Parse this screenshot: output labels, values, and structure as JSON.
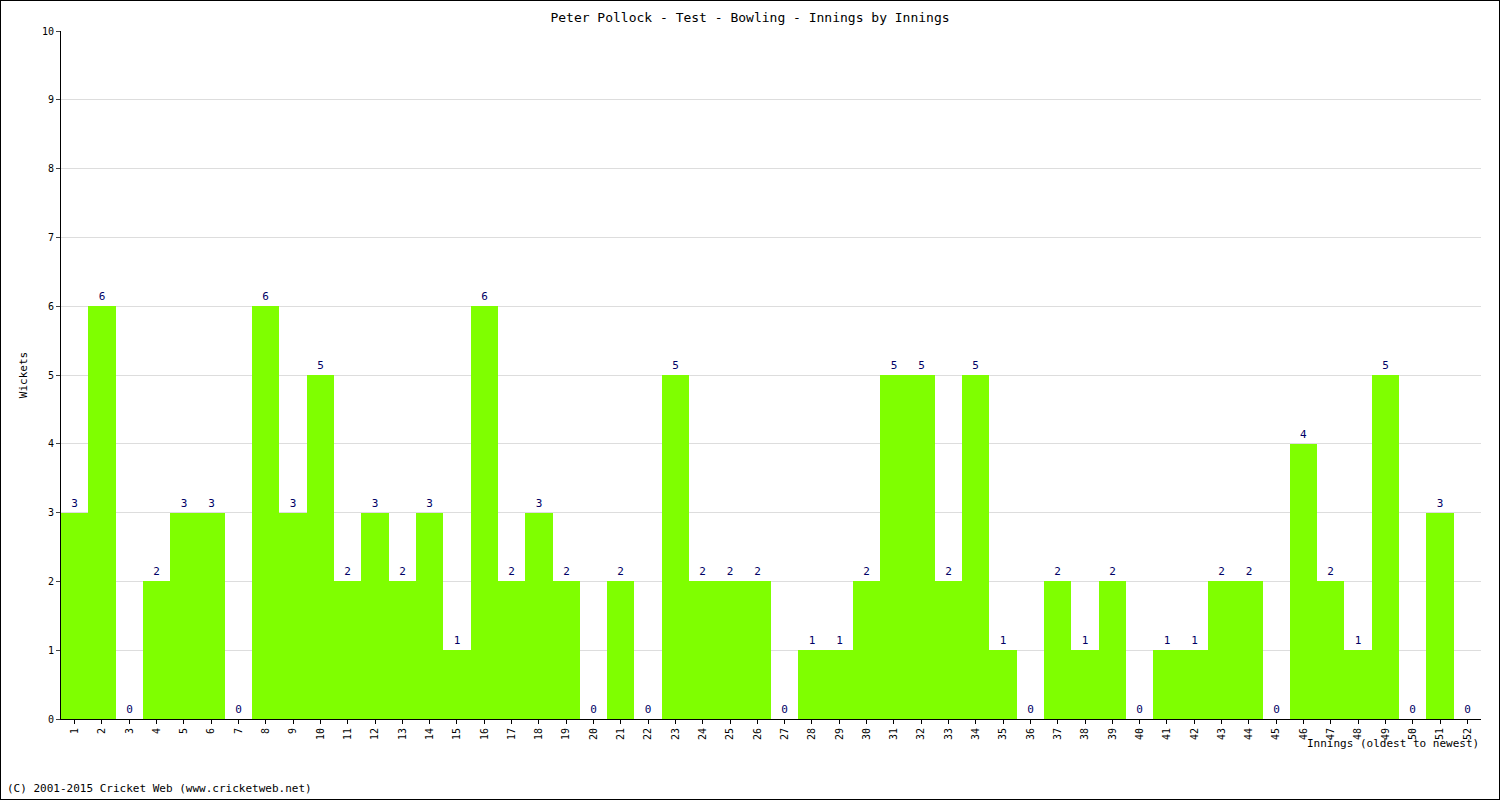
{
  "chart_data": {
    "type": "bar",
    "title": "Peter Pollock - Test - Bowling - Innings by Innings",
    "x_label": "Innings (oldest to newest)",
    "y_label": "Wickets",
    "annotations": [
      "(C) 2001-2015 Cricket Web (www.cricketweb.net)"
    ],
    "categories": [
      "1",
      "2",
      "3",
      "4",
      "5",
      "6",
      "7",
      "8",
      "9",
      "10",
      "11",
      "12",
      "13",
      "14",
      "15",
      "16",
      "17",
      "18",
      "19",
      "20",
      "21",
      "22",
      "23",
      "24",
      "25",
      "26",
      "27",
      "28",
      "29",
      "30",
      "31",
      "32",
      "33",
      "34",
      "35",
      "36",
      "37",
      "38",
      "39",
      "40",
      "41",
      "42",
      "43",
      "44",
      "45",
      "46",
      "47",
      "48",
      "49",
      "50",
      "51",
      "52"
    ],
    "values": [
      3,
      6,
      0,
      2,
      3,
      3,
      0,
      6,
      3,
      5,
      2,
      3,
      2,
      3,
      1,
      6,
      2,
      3,
      2,
      0,
      2,
      0,
      5,
      2,
      2,
      2,
      0,
      1,
      1,
      2,
      5,
      5,
      2,
      5,
      1,
      0,
      2,
      1,
      2,
      0,
      1,
      1,
      2,
      2,
      0,
      4,
      2,
      1,
      5,
      0,
      3,
      0
    ],
    "color": "#7fff00",
    "ylim": [
      0,
      10
    ],
    "yticks": [
      0,
      1,
      2,
      3,
      4,
      5,
      6,
      7,
      8,
      9,
      10
    ],
    "grid": true,
    "data_labels": true
  }
}
